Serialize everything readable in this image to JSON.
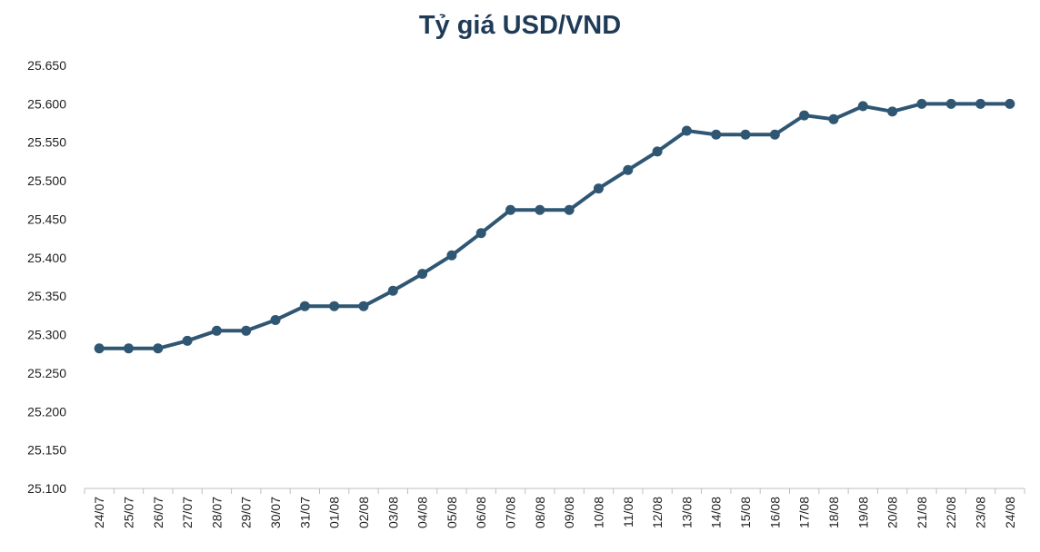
{
  "chart_data": {
    "type": "line",
    "title": "Tỷ giá USD/VND",
    "xlabel": "",
    "ylabel": "",
    "ylim": [
      25100,
      25650
    ],
    "y_ticks": [
      25100,
      25150,
      25200,
      25250,
      25300,
      25350,
      25400,
      25450,
      25500,
      25550,
      25600,
      25650
    ],
    "y_tick_labels": [
      "25.100",
      "25.150",
      "25.200",
      "25.250",
      "25.300",
      "25.350",
      "25.400",
      "25.450",
      "25.500",
      "25.550",
      "25.600",
      "25.650"
    ],
    "grid": false,
    "categories": [
      "24/07",
      "25/07",
      "26/07",
      "27/07",
      "28/07",
      "29/07",
      "30/07",
      "31/07",
      "01/08",
      "02/08",
      "03/08",
      "04/08",
      "05/08",
      "06/08",
      "07/08",
      "08/08",
      "09/08",
      "10/08",
      "11/08",
      "12/08",
      "13/08",
      "14/08",
      "15/08",
      "16/08",
      "17/08",
      "18/08",
      "19/08",
      "20/08",
      "21/08",
      "22/08",
      "23/08",
      "24/08"
    ],
    "series": [
      {
        "color": "#2f5673",
        "values": [
          25282,
          25282,
          25282,
          25292,
          25305,
          25305,
          25319,
          25337,
          25337,
          25337,
          25357,
          25379,
          25403,
          25432,
          25462,
          25462,
          25462,
          25490,
          25514,
          25538,
          25565,
          25560,
          25560,
          25560,
          25585,
          25580,
          25597,
          25590,
          25600,
          25600,
          25600,
          25600
        ]
      }
    ]
  },
  "colors": {
    "title": "#1f3b57",
    "line": "#2f5673",
    "axis": "#bfbfbf",
    "text": "#222222"
  }
}
